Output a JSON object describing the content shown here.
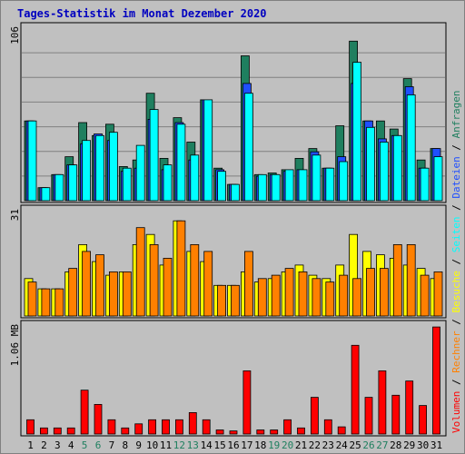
{
  "chart_data": {
    "type": "bar",
    "title": "Tages-Statistik im Monat Dezember 2020",
    "categories": [
      "1",
      "2",
      "3",
      "4",
      "5",
      "6",
      "7",
      "8",
      "9",
      "10",
      "11",
      "12",
      "13",
      "14",
      "15",
      "16",
      "17",
      "18",
      "19",
      "20",
      "21",
      "22",
      "23",
      "24",
      "25",
      "26",
      "27",
      "28",
      "29",
      "30",
      "31"
    ],
    "weekend_days": [
      "5",
      "6",
      "12",
      "13",
      "19",
      "20",
      "26",
      "27"
    ],
    "panels": [
      {
        "id": "top",
        "ymax_label": "106",
        "ylim": [
          0,
          106
        ],
        "series": [
          {
            "name": "Anfragen",
            "color": "#1f7f5f",
            "values": [
              49,
              8,
              16,
              27,
              48,
              40,
              47,
              21,
              25,
              66,
              26,
              51,
              36,
              62,
              20,
              10,
              89,
              16,
              17,
              19,
              26,
              32,
              20,
              46,
              98,
              49,
              49,
              44,
              75,
              25,
              32
            ]
          },
          {
            "name": "Dateien",
            "color": "#1f4fff",
            "values": [
              49,
              8,
              16,
              22,
              35,
              41,
              37,
              18,
              20,
              50,
              19,
              48,
              25,
              62,
              19,
              10,
              72,
              15,
              16,
              18,
              19,
              30,
              20,
              27,
              72,
              49,
              38,
              40,
              70,
              20,
              32
            ]
          },
          {
            "name": "Seiten",
            "color": "#00ffff",
            "values": [
              49,
              8,
              16,
              22,
              37,
              40,
              42,
              20,
              34,
              56,
              22,
              47,
              28,
              62,
              18,
              10,
              66,
              16,
              16,
              19,
              19,
              28,
              20,
              24,
              85,
              45,
              36,
              40,
              65,
              20,
              27
            ]
          }
        ]
      },
      {
        "id": "middle",
        "ymax_label": "31",
        "ylim": [
          0,
          31
        ],
        "series": [
          {
            "name": "Besuche",
            "color": "#ffff00",
            "values": [
              11,
              8,
              8,
              13,
              21,
              16,
              12,
              13,
              21,
              24,
              15,
              28,
              19,
              16,
              9,
              9,
              13,
              10,
              11,
              13,
              15,
              12,
              11,
              15,
              24,
              19,
              18,
              17,
              15,
              14,
              11
            ]
          },
          {
            "name": "Rechner",
            "color": "#ff8000",
            "values": [
              10,
              8,
              8,
              14,
              19,
              18,
              13,
              13,
              26,
              21,
              17,
              28,
              21,
              19,
              9,
              9,
              19,
              11,
              12,
              14,
              13,
              11,
              10,
              12,
              11,
              14,
              14,
              21,
              21,
              12,
              13
            ]
          }
        ]
      },
      {
        "id": "bottom",
        "ymax_label": "1.06 MB",
        "ylim": [
          0,
          1.06
        ],
        "series": [
          {
            "name": "Volumen",
            "color": "#ff0000",
            "values": [
              0.14,
              0.06,
              0.06,
              0.06,
              0.43,
              0.29,
              0.14,
              0.06,
              0.1,
              0.14,
              0.14,
              0.14,
              0.21,
              0.14,
              0.04,
              0.03,
              0.62,
              0.04,
              0.04,
              0.14,
              0.06,
              0.36,
              0.14,
              0.07,
              0.87,
              0.36,
              0.62,
              0.38,
              0.52,
              0.28,
              1.05
            ]
          }
        ]
      }
    ],
    "right_label_parts": [
      {
        "text": "Volumen",
        "color": "#ff0000"
      },
      {
        "text": " / ",
        "color": "#000000"
      },
      {
        "text": "Rechner",
        "color": "#ff8000"
      },
      {
        "text": " / ",
        "color": "#000000"
      },
      {
        "text": "Besuche",
        "color": "#ffff00"
      },
      {
        "text": " / ",
        "color": "#000000"
      },
      {
        "text": "Seiten",
        "color": "#00ffff"
      },
      {
        "text": " / ",
        "color": "#000000"
      },
      {
        "text": "Dateien",
        "color": "#1f4fff"
      },
      {
        "text": " / ",
        "color": "#000000"
      },
      {
        "text": "Anfragen",
        "color": "#1f7f5f"
      }
    ],
    "colors": {
      "background": "#c0c0c0",
      "plot_background": "#c0c0c0",
      "grid": "#808080",
      "title": "#0000c0",
      "weekday_label": "#000000",
      "weekend_label": "#1f7f5f"
    },
    "grid": true,
    "legend": "right-vertical"
  }
}
